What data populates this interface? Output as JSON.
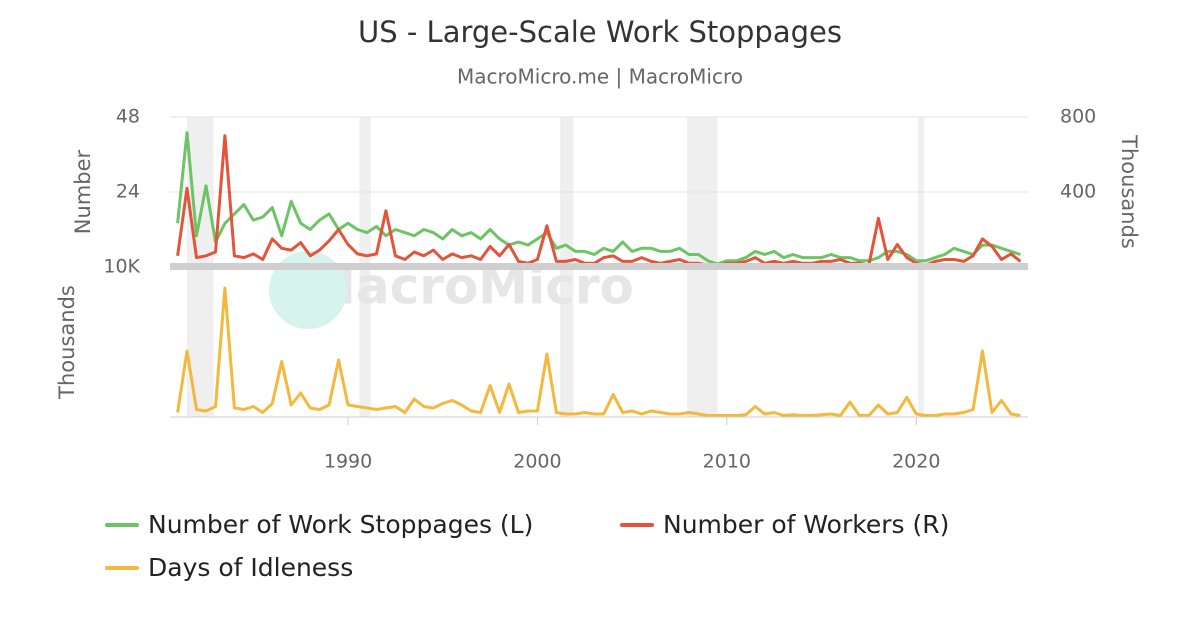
{
  "title": "US - Large-Scale Work Stoppages",
  "subtitle": "MacroMicro.me | MacroMicro",
  "watermark": "MacroMicro",
  "chart_data": [
    {
      "type": "line",
      "ylabel": "Number",
      "y2label": "Thousands",
      "xlim": [
        1980.6,
        2025.9
      ],
      "ylim": [
        0,
        48
      ],
      "yticks": [
        24,
        48
      ],
      "y2lim": [
        0,
        800
      ],
      "y2ticks": [
        400,
        800
      ],
      "grid": true,
      "shaded_ranges": [
        [
          1981.5,
          1982.9
        ],
        [
          1990.6,
          1991.2
        ],
        [
          2001.2,
          2001.9
        ],
        [
          2007.9,
          2009.5
        ],
        [
          2020.1,
          2020.4
        ]
      ],
      "x": [
        1981.0,
        1981.5,
        1982.0,
        1982.5,
        1983.0,
        1983.5,
        1984.0,
        1984.5,
        1985.0,
        1985.5,
        1986.0,
        1986.5,
        1987.0,
        1987.5,
        1988.0,
        1988.5,
        1989.0,
        1989.5,
        1990.0,
        1990.5,
        1991.0,
        1991.5,
        1992.0,
        1992.5,
        1993.0,
        1993.5,
        1994.0,
        1994.5,
        1995.0,
        1995.5,
        1996.0,
        1996.5,
        1997.0,
        1997.5,
        1998.0,
        1998.5,
        1999.0,
        1999.5,
        2000.0,
        2000.5,
        2001.0,
        2001.5,
        2002.0,
        2002.5,
        2003.0,
        2003.5,
        2004.0,
        2004.5,
        2005.0,
        2005.5,
        2006.0,
        2006.5,
        2007.0,
        2007.5,
        2008.0,
        2008.5,
        2009.0,
        2009.5,
        2010.0,
        2010.5,
        2011.0,
        2011.5,
        2012.0,
        2012.5,
        2013.0,
        2013.5,
        2014.0,
        2014.5,
        2015.0,
        2015.5,
        2016.0,
        2016.5,
        2017.0,
        2017.5,
        2018.0,
        2018.5,
        2019.0,
        2019.5,
        2020.0,
        2020.5,
        2021.0,
        2021.5,
        2022.0,
        2022.5,
        2023.0,
        2023.5,
        2024.0,
        2024.5,
        2025.0,
        2025.5
      ],
      "series": [
        {
          "name": "Number of Work Stoppages (L)",
          "color": "#6cc465",
          "axis": "y",
          "values": [
            14,
            43,
            10,
            26,
            8,
            14,
            17,
            20,
            15,
            16,
            19,
            10,
            21,
            14,
            12,
            15,
            17,
            12,
            14,
            12,
            11,
            13,
            10,
            12,
            11,
            10,
            12,
            11,
            9,
            12,
            10,
            11,
            9,
            12,
            9,
            7,
            8,
            7,
            9,
            11,
            6,
            7,
            5,
            5,
            4,
            6,
            5,
            8,
            5,
            6,
            6,
            5,
            5,
            6,
            4,
            4,
            2,
            1,
            2,
            2,
            3,
            5,
            4,
            5,
            3,
            4,
            3,
            3,
            3,
            4,
            3,
            3,
            2,
            2,
            3,
            5,
            5,
            4,
            2,
            2,
            3,
            4,
            6,
            5,
            4,
            7,
            7,
            6,
            5,
            4
          ]
        },
        {
          "name": "Number of Workers (R)",
          "color": "#e5533a",
          "axis": "y2",
          "values": [
            60,
            420,
            50,
            60,
            80,
            700,
            60,
            50,
            70,
            40,
            150,
            100,
            90,
            130,
            60,
            90,
            140,
            200,
            120,
            70,
            60,
            70,
            300,
            60,
            40,
            80,
            60,
            90,
            40,
            70,
            50,
            60,
            40,
            110,
            60,
            120,
            30,
            20,
            40,
            220,
            30,
            30,
            40,
            20,
            20,
            50,
            60,
            30,
            30,
            50,
            30,
            20,
            30,
            40,
            20,
            20,
            10,
            10,
            20,
            20,
            30,
            50,
            20,
            30,
            20,
            30,
            20,
            20,
            30,
            30,
            40,
            20,
            20,
            10,
            260,
            40,
            120,
            50,
            20,
            10,
            30,
            40,
            40,
            30,
            60,
            150,
            110,
            40,
            70,
            30
          ]
        }
      ]
    },
    {
      "type": "line",
      "ylabel": "Thousands",
      "xlim": [
        1980.6,
        2025.9
      ],
      "ylim": [
        0,
        10000
      ],
      "yticks": [
        {
          "value": 10000,
          "label": "10K"
        }
      ],
      "xticks": [
        1990,
        2000,
        2010,
        2020
      ],
      "x": [
        1981.0,
        1981.5,
        1982.0,
        1982.5,
        1983.0,
        1983.5,
        1984.0,
        1984.5,
        1985.0,
        1985.5,
        1986.0,
        1986.5,
        1987.0,
        1987.5,
        1988.0,
        1988.5,
        1989.0,
        1989.5,
        1990.0,
        1990.5,
        1991.0,
        1991.5,
        1992.0,
        1992.5,
        1993.0,
        1993.5,
        1994.0,
        1994.5,
        1995.0,
        1995.5,
        1996.0,
        1996.5,
        1997.0,
        1997.5,
        1998.0,
        1998.5,
        1999.0,
        1999.5,
        2000.0,
        2000.5,
        2001.0,
        2001.5,
        2002.0,
        2002.5,
        2003.0,
        2003.5,
        2004.0,
        2004.5,
        2005.0,
        2005.5,
        2006.0,
        2006.5,
        2007.0,
        2007.5,
        2008.0,
        2008.5,
        2009.0,
        2009.5,
        2010.0,
        2010.5,
        2011.0,
        2011.5,
        2012.0,
        2012.5,
        2013.0,
        2013.5,
        2014.0,
        2014.5,
        2015.0,
        2015.5,
        2016.0,
        2016.5,
        2017.0,
        2017.5,
        2018.0,
        2018.5,
        2019.0,
        2019.5,
        2020.0,
        2020.5,
        2021.0,
        2021.5,
        2022.0,
        2022.5,
        2023.0,
        2023.5,
        2024.0,
        2024.5,
        2025.0,
        2025.5
      ],
      "series": [
        {
          "name": "Days of Idleness",
          "color": "#f5b83d",
          "values": [
            300,
            4400,
            500,
            400,
            700,
            8600,
            600,
            500,
            700,
            300,
            900,
            3700,
            800,
            1600,
            600,
            500,
            800,
            3800,
            800,
            700,
            600,
            500,
            600,
            700,
            300,
            1200,
            700,
            600,
            900,
            1100,
            800,
            400,
            300,
            2100,
            300,
            2200,
            300,
            400,
            400,
            4200,
            300,
            200,
            200,
            300,
            200,
            200,
            1500,
            300,
            400,
            200,
            400,
            300,
            200,
            200,
            300,
            200,
            100,
            100,
            100,
            100,
            150,
            700,
            200,
            300,
            100,
            150,
            100,
            100,
            150,
            200,
            100,
            1000,
            100,
            100,
            800,
            200,
            300,
            1300,
            200,
            100,
            100,
            200,
            200,
            300,
            500,
            4400,
            300,
            1100,
            200,
            100
          ]
        }
      ]
    }
  ]
}
